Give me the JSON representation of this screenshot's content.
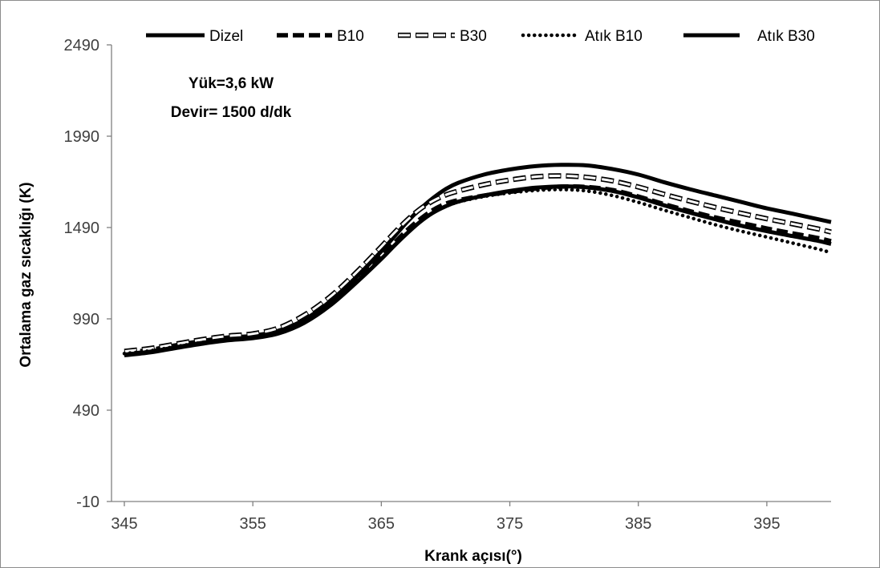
{
  "chart_data": {
    "type": "line",
    "title": "",
    "xlabel": "Krank açısı(°)",
    "ylabel": "Ortalama gaz sıcaklığı (K)",
    "xlim": [
      345,
      400
    ],
    "ylim": [
      -10,
      2490
    ],
    "xticks": [
      345,
      355,
      365,
      375,
      385,
      395
    ],
    "yticks": [
      -10,
      490,
      990,
      1490,
      1990,
      2490
    ],
    "grid": false,
    "legend_position": "top",
    "annotations": [
      "Yük=3,6 kW",
      "Devir= 1500 d/dk"
    ],
    "series": [
      {
        "name": "Dizel",
        "style": "solid",
        "color": "#000000",
        "points": [
          [
            345,
            796
          ],
          [
            347,
            812
          ],
          [
            349,
            835
          ],
          [
            351,
            858
          ],
          [
            353,
            880
          ],
          [
            355,
            897
          ],
          [
            357,
            925
          ],
          [
            359,
            985
          ],
          [
            361,
            1085
          ],
          [
            363,
            1215
          ],
          [
            365,
            1360
          ],
          [
            366,
            1440
          ],
          [
            367,
            1520
          ],
          [
            368,
            1590
          ],
          [
            369,
            1650
          ],
          [
            370,
            1700
          ],
          [
            371,
            1735
          ],
          [
            373,
            1780
          ],
          [
            375,
            1808
          ],
          [
            377,
            1826
          ],
          [
            379,
            1833
          ],
          [
            381,
            1830
          ],
          [
            383,
            1810
          ],
          [
            385,
            1780
          ],
          [
            387,
            1738
          ],
          [
            389,
            1700
          ],
          [
            391,
            1665
          ],
          [
            393,
            1630
          ],
          [
            395,
            1595
          ],
          [
            397,
            1566
          ],
          [
            399,
            1535
          ],
          [
            400,
            1520
          ]
        ]
      },
      {
        "name": "B10",
        "style": "dashed",
        "color": "#000000",
        "points": [
          [
            345,
            805
          ],
          [
            347,
            820
          ],
          [
            349,
            845
          ],
          [
            351,
            868
          ],
          [
            353,
            887
          ],
          [
            355,
            896
          ],
          [
            357,
            920
          ],
          [
            359,
            980
          ],
          [
            361,
            1075
          ],
          [
            363,
            1200
          ],
          [
            365,
            1330
          ],
          [
            366,
            1405
          ],
          [
            367,
            1475
          ],
          [
            368,
            1535
          ],
          [
            369,
            1585
          ],
          [
            370,
            1620
          ],
          [
            371,
            1640
          ],
          [
            373,
            1665
          ],
          [
            375,
            1685
          ],
          [
            377,
            1703
          ],
          [
            379,
            1714
          ],
          [
            381,
            1712
          ],
          [
            383,
            1695
          ],
          [
            385,
            1660
          ],
          [
            387,
            1618
          ],
          [
            389,
            1580
          ],
          [
            391,
            1545
          ],
          [
            393,
            1515
          ],
          [
            395,
            1485
          ],
          [
            397,
            1458
          ],
          [
            399,
            1432
          ],
          [
            400,
            1415
          ]
        ]
      },
      {
        "name": "B30",
        "style": "hollow-dashed",
        "color": "#000000",
        "points": [
          [
            345,
            812
          ],
          [
            347,
            828
          ],
          [
            349,
            852
          ],
          [
            351,
            876
          ],
          [
            353,
            896
          ],
          [
            355,
            908
          ],
          [
            357,
            940
          ],
          [
            359,
            1010
          ],
          [
            361,
            1110
          ],
          [
            363,
            1240
          ],
          [
            365,
            1385
          ],
          [
            366,
            1460
          ],
          [
            367,
            1530
          ],
          [
            368,
            1590
          ],
          [
            369,
            1635
          ],
          [
            370,
            1668
          ],
          [
            371,
            1690
          ],
          [
            373,
            1725
          ],
          [
            375,
            1750
          ],
          [
            377,
            1768
          ],
          [
            379,
            1773
          ],
          [
            381,
            1765
          ],
          [
            383,
            1745
          ],
          [
            385,
            1712
          ],
          [
            387,
            1672
          ],
          [
            389,
            1635
          ],
          [
            391,
            1600
          ],
          [
            393,
            1568
          ],
          [
            395,
            1538
          ],
          [
            397,
            1510
          ],
          [
            399,
            1482
          ],
          [
            400,
            1465
          ]
        ]
      },
      {
        "name": "Atık B10",
        "style": "dotted",
        "color": "#000000",
        "points": [
          [
            345,
            800
          ],
          [
            347,
            815
          ],
          [
            349,
            838
          ],
          [
            351,
            860
          ],
          [
            353,
            878
          ],
          [
            355,
            888
          ],
          [
            357,
            912
          ],
          [
            359,
            970
          ],
          [
            361,
            1065
          ],
          [
            363,
            1190
          ],
          [
            365,
            1320
          ],
          [
            366,
            1390
          ],
          [
            367,
            1460
          ],
          [
            368,
            1520
          ],
          [
            369,
            1570
          ],
          [
            370,
            1605
          ],
          [
            371,
            1630
          ],
          [
            373,
            1660
          ],
          [
            375,
            1680
          ],
          [
            377,
            1693
          ],
          [
            379,
            1698
          ],
          [
            381,
            1690
          ],
          [
            383,
            1665
          ],
          [
            385,
            1628
          ],
          [
            387,
            1585
          ],
          [
            389,
            1545
          ],
          [
            391,
            1505
          ],
          [
            393,
            1470
          ],
          [
            395,
            1438
          ],
          [
            397,
            1405
          ],
          [
            399,
            1372
          ],
          [
            400,
            1352
          ]
        ]
      },
      {
        "name": "Atık B30",
        "style": "solid",
        "color": "#000000",
        "points": [
          [
            345,
            790
          ],
          [
            347,
            806
          ],
          [
            349,
            830
          ],
          [
            351,
            853
          ],
          [
            353,
            872
          ],
          [
            355,
            884
          ],
          [
            357,
            910
          ],
          [
            359,
            968
          ],
          [
            361,
            1062
          ],
          [
            363,
            1185
          ],
          [
            365,
            1318
          ],
          [
            366,
            1390
          ],
          [
            367,
            1458
          ],
          [
            368,
            1520
          ],
          [
            369,
            1570
          ],
          [
            370,
            1606
          ],
          [
            371,
            1632
          ],
          [
            373,
            1665
          ],
          [
            375,
            1690
          ],
          [
            377,
            1708
          ],
          [
            379,
            1715
          ],
          [
            381,
            1710
          ],
          [
            383,
            1690
          ],
          [
            385,
            1655
          ],
          [
            387,
            1612
          ],
          [
            389,
            1572
          ],
          [
            391,
            1535
          ],
          [
            393,
            1500
          ],
          [
            395,
            1470
          ],
          [
            397,
            1443
          ],
          [
            399,
            1417
          ],
          [
            400,
            1400
          ]
        ]
      }
    ]
  }
}
